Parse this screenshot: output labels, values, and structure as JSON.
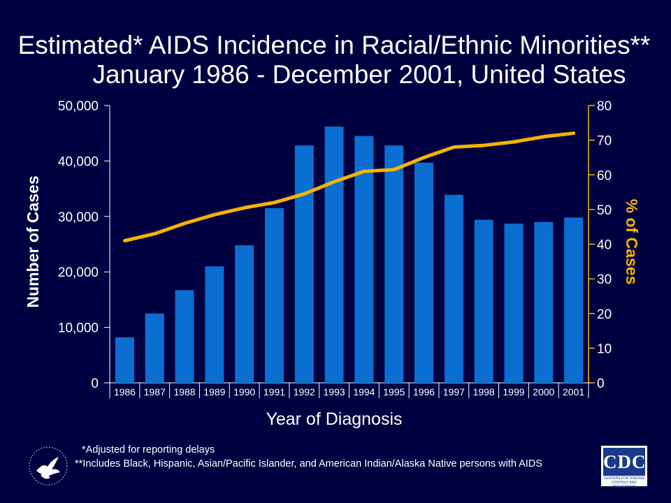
{
  "title_line1": "Estimated* AIDS Incidence in Racial/Ethnic Minorities**",
  "title_line2": "January 1986 - December 2001, United States",
  "footnote1": "*Adjusted for reporting delays",
  "footnote2": "**Includes Black, Hispanic, Asian/Pacific Islander, and American Indian/Alaska Native persons with AIDS",
  "logo_hhs": "hhs-eagle-seal-icon",
  "logo_cdc": {
    "text": "CDC",
    "subtext": "CENTERS FOR DISEASE CONTROL AND PREVENTION"
  },
  "colors": {
    "background": "#000040",
    "bar": "#0a6fd1",
    "line": "#f4b400",
    "text": "#ffffff"
  },
  "chart_data": {
    "type": "bar",
    "categories": [
      "1986",
      "1987",
      "1988",
      "1989",
      "1990",
      "1991",
      "1992",
      "1993",
      "1994",
      "1995",
      "1996",
      "1997",
      "1998",
      "1999",
      "2000",
      "2001"
    ],
    "series": [
      {
        "values": [
          8200,
          12500,
          16700,
          21000,
          24800,
          31500,
          42800,
          46200,
          44500,
          42800,
          39700,
          33900,
          29400,
          28700,
          29000,
          29800
        ]
      },
      {
        "type": "line",
        "axis": "right",
        "values": [
          41,
          43,
          46,
          48.5,
          50.5,
          52,
          54.5,
          58,
          61,
          61.5,
          65,
          68,
          68.5,
          69.5,
          71,
          72
        ]
      }
    ],
    "xlabel": "Year of Diagnosis",
    "ylabel": "Number of Cases",
    "y2label": "% of Cases",
    "ylim": [
      0,
      50000
    ],
    "y2lim": [
      0,
      80
    ],
    "yticks": [
      "0",
      "10,000",
      "20,000",
      "30,000",
      "40,000",
      "50,000"
    ],
    "y2ticks": [
      "0",
      "10",
      "20",
      "30",
      "40",
      "50",
      "60",
      "70",
      "80"
    ],
    "grid": false
  }
}
